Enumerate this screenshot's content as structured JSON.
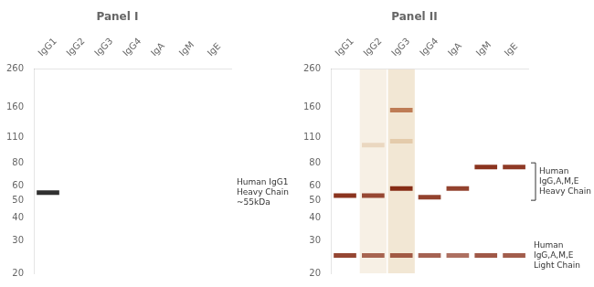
{
  "chart_data": [
    {
      "type": "blot",
      "title": "Panel I",
      "categories": [
        "IgG1",
        "IgG2",
        "IgG3",
        "IgG4",
        "IgA",
        "IgM",
        "IgE"
      ],
      "log": "y",
      "ylim": [
        20,
        260
      ],
      "yticks": [
        260,
        160,
        110,
        80,
        60,
        50,
        40,
        30,
        20
      ],
      "grid": false,
      "series": [
        {
          "color": "#1a1a1a",
          "values": [
            55,
            null,
            null,
            null,
            null,
            null,
            null
          ],
          "intensity": [
            0.9,
            null,
            null,
            null,
            null,
            null,
            null
          ]
        }
      ],
      "annotations": [
        {
          "text": "Human IgG1\nHeavy Chain\n~55kDa",
          "y": 55
        }
      ]
    },
    {
      "type": "blot",
      "title": "Panel II",
      "categories": [
        "IgG1",
        "IgG2",
        "IgG3",
        "IgG4",
        "IgA",
        "IgM",
        "IgE"
      ],
      "log": "y",
      "ylim": [
        20,
        260
      ],
      "yticks": [
        260,
        160,
        110,
        80,
        60,
        50,
        40,
        30,
        20
      ],
      "grid": false,
      "series": [
        {
          "type": "stain",
          "color": "#bf8526",
          "intensity": [
            null,
            0.12,
            0.2,
            null,
            null,
            null,
            null
          ]
        },
        {
          "color": "#c08040",
          "values": [
            null,
            100,
            105,
            null,
            null,
            null,
            null
          ],
          "intensity": [
            null,
            0.22,
            0.28,
            null,
            null,
            null,
            null
          ]
        },
        {
          "color": "#9B3500",
          "values": [
            null,
            null,
            155,
            null,
            null,
            null,
            null
          ],
          "intensity": [
            null,
            null,
            0.6,
            null,
            null,
            null,
            null
          ]
        },
        {
          "color": "#7B1800",
          "values": [
            53,
            53,
            58,
            52,
            58,
            76,
            76
          ],
          "intensity": [
            0.88,
            0.78,
            0.9,
            0.82,
            0.82,
            0.88,
            0.85
          ]
        },
        {
          "color": "#7B1800",
          "values": [
            25,
            25,
            25,
            25,
            25,
            25,
            25
          ],
          "intensity": [
            0.8,
            0.65,
            0.68,
            0.68,
            0.62,
            0.72,
            0.7
          ]
        }
      ],
      "annotations": [
        {
          "text": "Human\nIgG,A,M,E\nHeavy Chain",
          "y": [
            80,
            50
          ]
        },
        {
          "text": "Human\nIgG,A,M,E\nLight Chain",
          "y": 25
        }
      ]
    }
  ]
}
